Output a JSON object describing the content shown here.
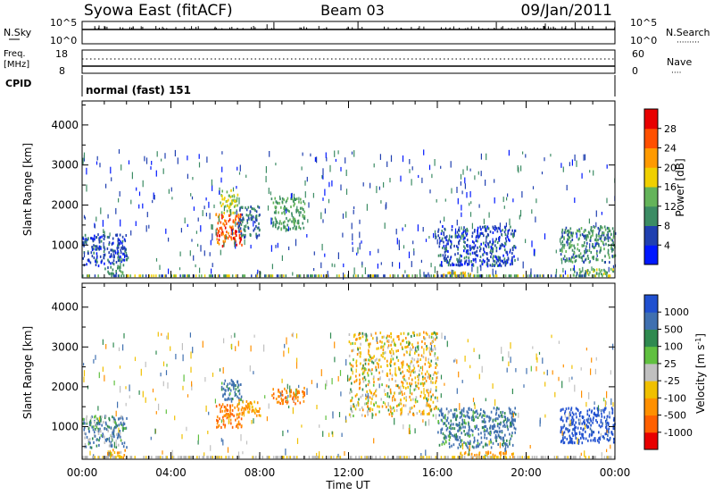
{
  "header": {
    "station": "Syowa East (fitACF)",
    "beam": "Beam 03",
    "date": "09/Jan/2011"
  },
  "strips": {
    "nsky_label": "N.Sky",
    "nsky_ticks": [
      "10^5",
      "10^0"
    ],
    "nsearch_label": "N.Search",
    "nsearch_ticks": [
      "10^5",
      "10^0"
    ],
    "freq_label": "Freq.",
    "freq_unit": "[MHz]",
    "freq_ticks": [
      "18",
      "8"
    ],
    "nave_label": "Nave",
    "nave_ticks": [
      "60",
      "0"
    ],
    "cpid_label": "CPID",
    "cpid_value": "normal (fast) 151"
  },
  "colors": {
    "power": [
      "#0018ff",
      "#2040b0",
      "#3c8c64",
      "#64b45a",
      "#f0d000",
      "#ff9a00",
      "#ff5000",
      "#e80000"
    ],
    "velocity": [
      "#2050d0",
      "#4070b0",
      "#2f8a50",
      "#60c040",
      "#c0c0c0",
      "#f0c000",
      "#ff9000",
      "#ff6000",
      "#e80000"
    ],
    "ground": "#b0b0b0"
  },
  "chart_data": [
    {
      "type": "heatmap",
      "name": "power-panel",
      "ylabel": "Slant Range [km]",
      "xlim": [
        0,
        24
      ],
      "ylim": [
        180,
        4600
      ],
      "yticks": [
        "1000",
        "2000",
        "3000",
        "4000"
      ],
      "colorbar": {
        "label": "Power [dB]",
        "ticks": [
          "4",
          "8",
          "12",
          "16",
          "20",
          "24",
          "28"
        ],
        "range": [
          0,
          32
        ]
      },
      "regions": [
        {
          "x": [
            0.0,
            2.0
          ],
          "y": [
            500,
            1300
          ],
          "value": 6
        },
        {
          "x": [
            1.0,
            1.8
          ],
          "y": [
            300,
            500
          ],
          "value": 10
        },
        {
          "x": [
            6.0,
            7.2
          ],
          "y": [
            1000,
            1800
          ],
          "value": 26
        },
        {
          "x": [
            6.2,
            7.0
          ],
          "y": [
            1800,
            2400
          ],
          "value": 16
        },
        {
          "x": [
            7.0,
            8.0
          ],
          "y": [
            1200,
            2000
          ],
          "value": 8
        },
        {
          "x": [
            8.5,
            10.0
          ],
          "y": [
            1400,
            2200
          ],
          "value": 12
        },
        {
          "x": [
            16.0,
            19.5
          ],
          "y": [
            500,
            1500
          ],
          "value": 6
        },
        {
          "x": [
            16.0,
            17.5
          ],
          "y": [
            250,
            350
          ],
          "value": 20
        },
        {
          "x": [
            21.5,
            24.0
          ],
          "y": [
            600,
            1500
          ],
          "value": 10
        },
        {
          "x": [
            22.0,
            24.0
          ],
          "y": [
            250,
            450
          ],
          "value": 14
        }
      ]
    },
    {
      "type": "heatmap",
      "name": "velocity-panel",
      "xlabel": "Time UT",
      "ylabel": "Slant Range [km]",
      "xlim": [
        0,
        24
      ],
      "ylim": [
        180,
        4600
      ],
      "xticks": [
        "00:00",
        "04:00",
        "08:00",
        "12:00",
        "16:00",
        "20:00",
        "00:00"
      ],
      "yticks": [
        "1000",
        "2000",
        "3000",
        "4000"
      ],
      "colorbar": {
        "label": "Velocity [m s^-1]",
        "ticks": [
          "1000",
          "500",
          "100",
          "25",
          "-25",
          "-100",
          "-500",
          "-1000"
        ]
      },
      "regions": [
        {
          "x": [
            0.0,
            2.0
          ],
          "y": [
            500,
            1300
          ],
          "value": 100
        },
        {
          "x": [
            1.0,
            2.0
          ],
          "y": [
            250,
            450
          ],
          "value": -100
        },
        {
          "x": [
            6.0,
            7.2
          ],
          "y": [
            1000,
            1600
          ],
          "value": -300
        },
        {
          "x": [
            6.2,
            7.2
          ],
          "y": [
            1600,
            2200
          ],
          "value": 150
        },
        {
          "x": [
            7.0,
            8.0
          ],
          "y": [
            1300,
            1700
          ],
          "value": -150
        },
        {
          "x": [
            8.5,
            10.0
          ],
          "y": [
            1600,
            2000
          ],
          "value": -300
        },
        {
          "x": [
            12.0,
            16.0
          ],
          "y": [
            1300,
            3400
          ],
          "value": -50
        },
        {
          "x": [
            16.0,
            19.5
          ],
          "y": [
            500,
            1500
          ],
          "value": 150
        },
        {
          "x": [
            17.0,
            19.5
          ],
          "y": [
            250,
            400
          ],
          "value": -150
        },
        {
          "x": [
            21.5,
            24.0
          ],
          "y": [
            600,
            1500
          ],
          "value": 600
        }
      ]
    }
  ]
}
